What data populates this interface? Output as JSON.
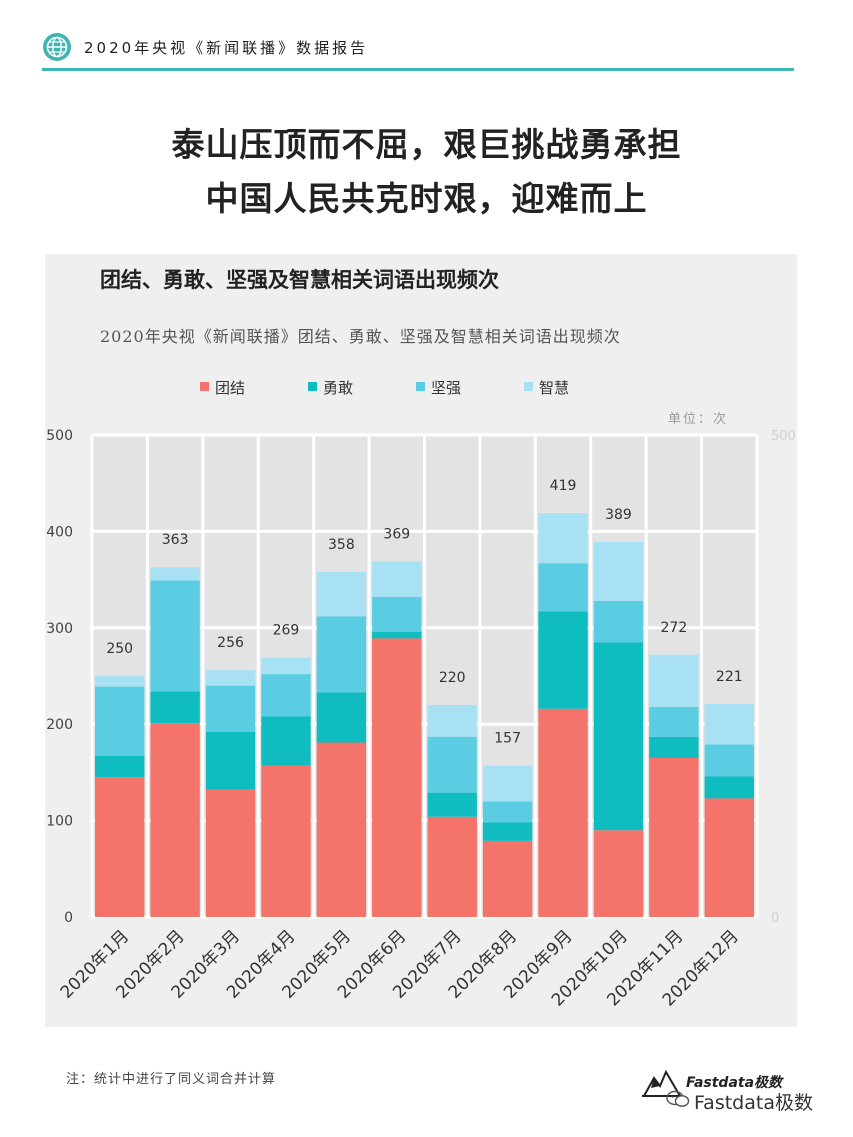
{
  "header": {
    "title": "2020年央视《新闻联播》数据报告",
    "icon": "globe-icon",
    "accent_color": "#3fb5b3"
  },
  "headline": {
    "line1": "泰山压顶而不屈，艰巨挑战勇承担",
    "line2": "中国人民共克时艰，迎难而上"
  },
  "footer": {
    "note": "注：统计中进行了同义词合并计算",
    "logo_text": "Fastdata极数",
    "watermark": "Fastdata极数"
  },
  "chart_data": {
    "type": "bar",
    "stacked": true,
    "title": "团结、勇敢、坚强及智慧相关词语出现频次",
    "subtitle": "2020年央视《新闻联播》团结、勇敢、坚强及智慧相关词语出现频次",
    "unit": "单位：次",
    "xlabel": "",
    "ylabel": "",
    "ylim": [
      0,
      500
    ],
    "y_ticks": [
      0,
      100,
      200,
      300,
      400,
      500
    ],
    "grid": true,
    "legend_position": "top",
    "categories": [
      "2020年1月",
      "2020年2月",
      "2020年3月",
      "2020年4月",
      "2020年5月",
      "2020年6月",
      "2020年7月",
      "2020年8月",
      "2020年9月",
      "2020年10月",
      "2020年11月",
      "2020年12月"
    ],
    "totals": [
      250,
      363,
      256,
      269,
      358,
      369,
      220,
      157,
      419,
      389,
      272,
      221
    ],
    "series": [
      {
        "name": "团结",
        "color": "#f4736a",
        "values": [
          145,
          201,
          132,
          157,
          181,
          289,
          104,
          79,
          216,
          90,
          165,
          123
        ]
      },
      {
        "name": "勇敢",
        "color": "#0fbcbf",
        "values": [
          22,
          33,
          60,
          51,
          52,
          7,
          25,
          19,
          101,
          195,
          22,
          23
        ]
      },
      {
        "name": "坚强",
        "color": "#5bcde3",
        "values": [
          72,
          115,
          48,
          44,
          79,
          36,
          58,
          22,
          50,
          43,
          31,
          33
        ]
      },
      {
        "name": "智慧",
        "color": "#a8e1f3",
        "values": [
          11,
          14,
          16,
          17,
          46,
          37,
          33,
          37,
          52,
          61,
          54,
          42
        ]
      }
    ]
  }
}
